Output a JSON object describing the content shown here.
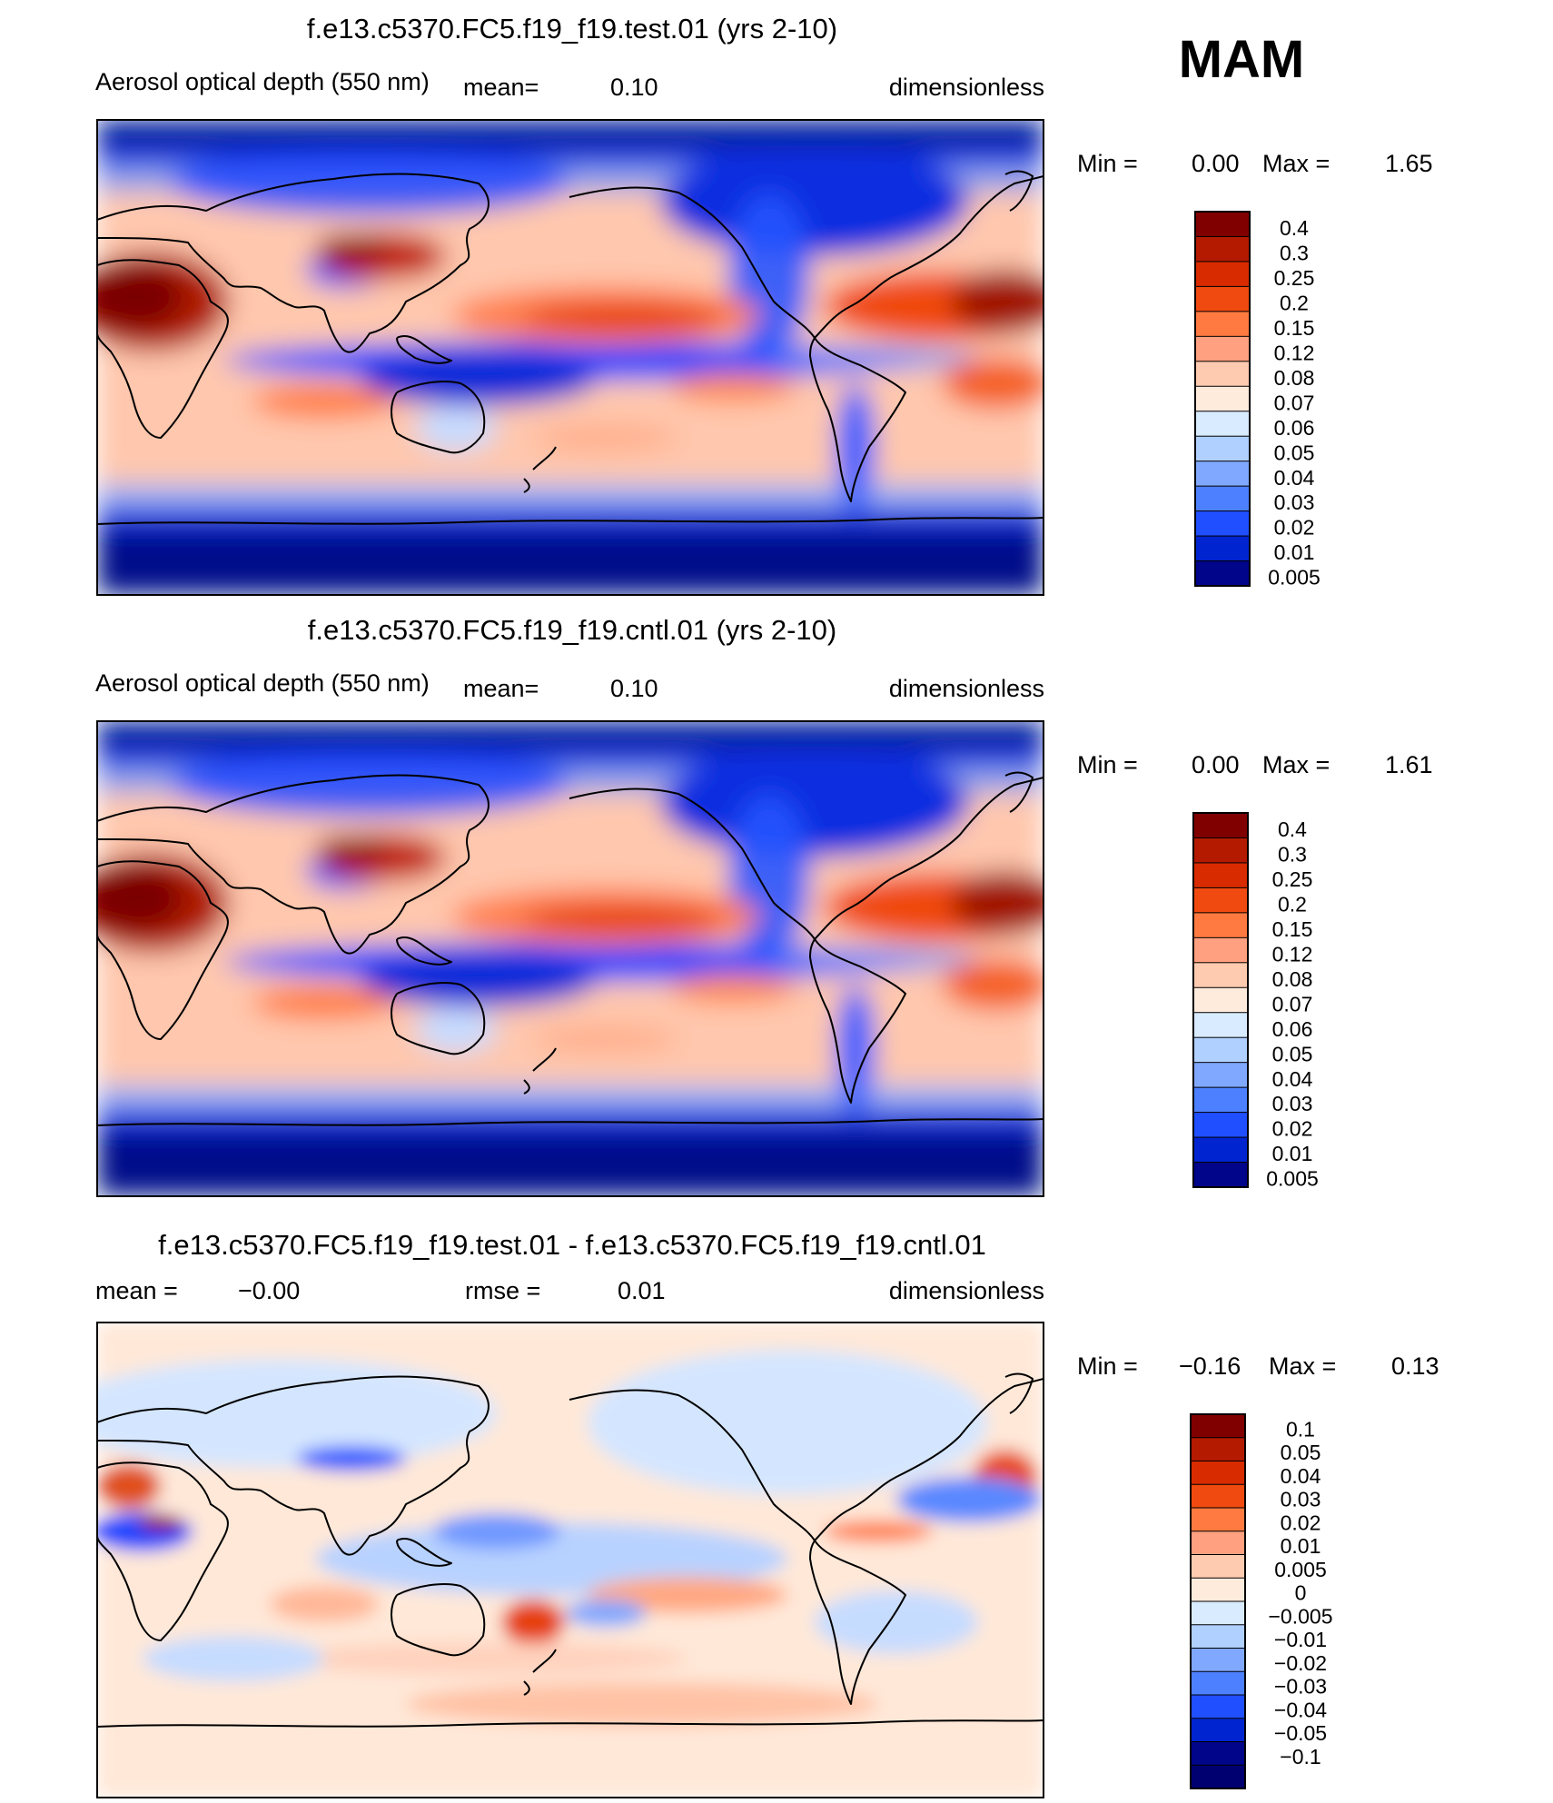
{
  "season": "MAM",
  "panels": [
    {
      "title": "f.e13.c5370.FC5.f19_f19.test.01 (yrs 2-10)",
      "variable": "Aerosol optical depth (550 nm)",
      "mean_label": "mean=",
      "mean_value": "0.10",
      "units": "dimensionless",
      "min_label": "Min =",
      "min_value": "0.00",
      "max_label": "Max =",
      "max_value": "1.65",
      "colorbar_levels": [
        "0.4",
        "0.3",
        "0.25",
        "0.2",
        "0.15",
        "0.12",
        "0.08",
        "0.07",
        "0.06",
        "0.05",
        "0.04",
        "0.03",
        "0.02",
        "0.01",
        "0.005"
      ],
      "colorbar_colors": [
        "#800000",
        "#b31a00",
        "#d92b00",
        "#f04a10",
        "#ff7a40",
        "#ffa080",
        "#ffcbb0",
        "#ffebdc",
        "#d8ebff",
        "#b0d0ff",
        "#80a8ff",
        "#4d80ff",
        "#1f4fff",
        "#0025d0",
        "#00058a"
      ]
    },
    {
      "title": "f.e13.c5370.FC5.f19_f19.cntl.01 (yrs 2-10)",
      "variable": "Aerosol optical depth (550 nm)",
      "mean_label": "mean=",
      "mean_value": "0.10",
      "units": "dimensionless",
      "min_label": "Min =",
      "min_value": "0.00",
      "max_label": "Max =",
      "max_value": "1.61",
      "colorbar_levels": [
        "0.4",
        "0.3",
        "0.25",
        "0.2",
        "0.15",
        "0.12",
        "0.08",
        "0.07",
        "0.06",
        "0.05",
        "0.04",
        "0.03",
        "0.02",
        "0.01",
        "0.005"
      ],
      "colorbar_colors": [
        "#800000",
        "#b31a00",
        "#d92b00",
        "#f04a10",
        "#ff7a40",
        "#ffa080",
        "#ffcbb0",
        "#ffebdc",
        "#d8ebff",
        "#b0d0ff",
        "#80a8ff",
        "#4d80ff",
        "#1f4fff",
        "#0025d0",
        "#00058a"
      ]
    },
    {
      "title": "f.e13.c5370.FC5.f19_f19.test.01 - f.e13.c5370.FC5.f19_f19.cntl.01",
      "mean_label": "mean =",
      "mean_value": "−0.00",
      "rmse_label": "rmse =",
      "rmse_value": "0.01",
      "units": "dimensionless",
      "min_label": "Min =",
      "min_value": "−0.16",
      "max_label": "Max =",
      "max_value": "0.13",
      "colorbar_levels": [
        "0.1",
        "0.05",
        "0.04",
        "0.03",
        "0.02",
        "0.01",
        "0.005",
        "0",
        "−0.005",
        "−0.01",
        "−0.02",
        "−0.03",
        "−0.04",
        "−0.05",
        "−0.1"
      ],
      "colorbar_colors": [
        "#800000",
        "#b31a00",
        "#d92b00",
        "#f04a10",
        "#ff7a40",
        "#ffa080",
        "#ffcbb0",
        "#ffebdc",
        "#d8ebff",
        "#b0d0ff",
        "#80a8ff",
        "#4d80ff",
        "#1f4fff",
        "#0025d0",
        "#00058a",
        "#000070"
      ]
    }
  ]
}
